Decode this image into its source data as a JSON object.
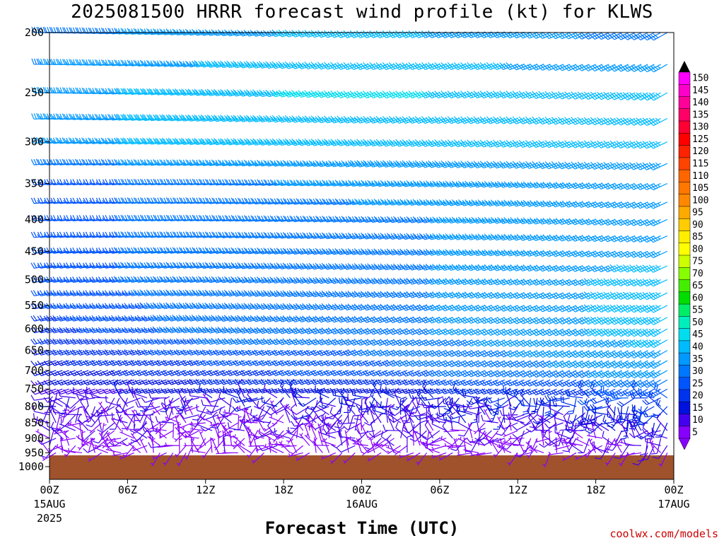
{
  "chart_data": {
    "type": "wind-barb-time-height",
    "title": "2025081500 HRRR forecast wind profile (kt) for KLWS",
    "xlabel": "Forecast Time (UTC)",
    "credit": "coolwx.com/models",
    "y_axis": {
      "scale": "log-pressure",
      "range": [
        200,
        1000
      ],
      "ticks": [
        "200",
        "250",
        "300",
        "350",
        "400",
        "450",
        "500",
        "550",
        "600",
        "650",
        "700",
        "750",
        "800",
        "850",
        "900",
        "950",
        "1000"
      ]
    },
    "x_axis": {
      "range_hours": [
        0,
        48
      ],
      "ticks": [
        {
          "hour": 0,
          "label": "00Z",
          "sub1": "15AUG",
          "sub2": "2025"
        },
        {
          "hour": 6,
          "label": "06Z",
          "sub1": "",
          "sub2": ""
        },
        {
          "hour": 12,
          "label": "12Z",
          "sub1": "",
          "sub2": ""
        },
        {
          "hour": 18,
          "label": "18Z",
          "sub1": "",
          "sub2": ""
        },
        {
          "hour": 24,
          "label": "00Z",
          "sub1": "16AUG",
          "sub2": ""
        },
        {
          "hour": 30,
          "label": "06Z",
          "sub1": "",
          "sub2": ""
        },
        {
          "hour": 36,
          "label": "12Z",
          "sub1": "",
          "sub2": ""
        },
        {
          "hour": 42,
          "label": "18Z",
          "sub1": "",
          "sub2": ""
        },
        {
          "hour": 48,
          "label": "00Z",
          "sub1": "17AUG",
          "sub2": ""
        }
      ]
    },
    "colorbar": {
      "labels": [
        "150",
        "145",
        "140",
        "135",
        "130",
        "125",
        "120",
        "115",
        "110",
        "105",
        "100",
        "95",
        "90",
        "85",
        "80",
        "75",
        "70",
        "65",
        "60",
        "55",
        "50",
        "45",
        "40",
        "35",
        "30",
        "25",
        "20",
        "15",
        "10",
        "5"
      ],
      "colors": [
        "#ff00ff",
        "#ff00cc",
        "#ff0099",
        "#ff0066",
        "#ff0033",
        "#ff0000",
        "#ff2200",
        "#ff4400",
        "#ff6600",
        "#ff7700",
        "#ff8800",
        "#ffaa00",
        "#ffcc00",
        "#ffee00",
        "#ffff00",
        "#ccff00",
        "#88ff00",
        "#44ee00",
        "#00dd00",
        "#00ee66",
        "#00eebb",
        "#00ddee",
        "#00bbff",
        "#0099ff",
        "#0077ff",
        "#0055ff",
        "#0033ee",
        "#0011dd",
        "#4400ee",
        "#8800ff"
      ]
    },
    "ground_color": "#a0522d",
    "levels_hpa": [
      200,
      225,
      250,
      275,
      300,
      325,
      350,
      375,
      400,
      425,
      450,
      475,
      500,
      525,
      550,
      575,
      600,
      625,
      650,
      675,
      700,
      725,
      750,
      775,
      800,
      825,
      850,
      875,
      900,
      925,
      950,
      975
    ],
    "times_hours_step": 0.5,
    "series": [
      {
        "level_hpa": 200,
        "speed_kt_by_hour": [
          [
            0,
            30
          ],
          [
            12,
            35
          ],
          [
            24,
            40
          ],
          [
            36,
            35
          ],
          [
            48,
            30
          ]
        ],
        "dir_deg_by_hour": [
          [
            0,
            270
          ],
          [
            12,
            260
          ],
          [
            24,
            250
          ],
          [
            36,
            250
          ],
          [
            48,
            240
          ]
        ]
      },
      {
        "level_hpa": 250,
        "speed_kt_by_hour": [
          [
            0,
            35
          ],
          [
            12,
            40
          ],
          [
            24,
            45
          ],
          [
            36,
            40
          ],
          [
            48,
            40
          ]
        ],
        "dir_deg_by_hour": [
          [
            0,
            270
          ],
          [
            12,
            260
          ],
          [
            24,
            250
          ],
          [
            36,
            250
          ],
          [
            48,
            240
          ]
        ]
      },
      {
        "level_hpa": 300,
        "speed_kt_by_hour": [
          [
            0,
            35
          ],
          [
            12,
            40
          ],
          [
            24,
            40
          ],
          [
            36,
            40
          ],
          [
            48,
            40
          ]
        ],
        "dir_deg_by_hour": [
          [
            0,
            265
          ],
          [
            12,
            260
          ],
          [
            24,
            255
          ],
          [
            36,
            250
          ],
          [
            48,
            245
          ]
        ]
      },
      {
        "level_hpa": 350,
        "speed_kt_by_hour": [
          [
            0,
            25
          ],
          [
            12,
            30
          ],
          [
            24,
            35
          ],
          [
            36,
            35
          ],
          [
            48,
            35
          ]
        ],
        "dir_deg_by_hour": [
          [
            0,
            265
          ],
          [
            12,
            265
          ],
          [
            24,
            260
          ],
          [
            36,
            255
          ],
          [
            48,
            245
          ]
        ]
      },
      {
        "level_hpa": 400,
        "speed_kt_by_hour": [
          [
            0,
            25
          ],
          [
            12,
            30
          ],
          [
            24,
            30
          ],
          [
            36,
            35
          ],
          [
            48,
            35
          ]
        ],
        "dir_deg_by_hour": [
          [
            0,
            265
          ],
          [
            12,
            265
          ],
          [
            24,
            260
          ],
          [
            36,
            255
          ],
          [
            48,
            245
          ]
        ]
      },
      {
        "level_hpa": 500,
        "speed_kt_by_hour": [
          [
            0,
            25
          ],
          [
            12,
            30
          ],
          [
            24,
            30
          ],
          [
            36,
            35
          ],
          [
            48,
            40
          ]
        ],
        "dir_deg_by_hour": [
          [
            0,
            260
          ],
          [
            12,
            260
          ],
          [
            24,
            255
          ],
          [
            36,
            250
          ],
          [
            48,
            245
          ]
        ]
      },
      {
        "level_hpa": 600,
        "speed_kt_by_hour": [
          [
            0,
            20
          ],
          [
            12,
            30
          ],
          [
            24,
            30
          ],
          [
            36,
            35
          ],
          [
            48,
            40
          ]
        ],
        "dir_deg_by_hour": [
          [
            0,
            255
          ],
          [
            12,
            255
          ],
          [
            24,
            250
          ],
          [
            36,
            245
          ],
          [
            48,
            240
          ]
        ]
      },
      {
        "level_hpa": 700,
        "speed_kt_by_hour": [
          [
            0,
            15
          ],
          [
            12,
            20
          ],
          [
            24,
            25
          ],
          [
            36,
            30
          ],
          [
            48,
            35
          ]
        ],
        "dir_deg_by_hour": [
          [
            0,
            250
          ],
          [
            12,
            250
          ],
          [
            24,
            250
          ],
          [
            36,
            245
          ],
          [
            48,
            240
          ]
        ]
      },
      {
        "level_hpa": 750,
        "speed_kt_by_hour": [
          [
            0,
            10
          ],
          [
            12,
            15
          ],
          [
            24,
            15
          ],
          [
            36,
            20
          ],
          [
            48,
            25
          ]
        ],
        "dir_deg_by_hour": [
          [
            0,
            250
          ],
          [
            12,
            255
          ],
          [
            24,
            255
          ],
          [
            36,
            250
          ],
          [
            48,
            240
          ]
        ]
      },
      {
        "level_hpa": 850,
        "speed_kt_by_hour": [
          [
            0,
            10
          ],
          [
            12,
            5
          ],
          [
            24,
            10
          ],
          [
            36,
            10
          ],
          [
            48,
            15
          ]
        ],
        "dir_deg_by_hour": [
          [
            0,
            300
          ],
          [
            12,
            280
          ],
          [
            24,
            300
          ],
          [
            36,
            280
          ],
          [
            48,
            250
          ]
        ]
      },
      {
        "level_hpa": 950,
        "speed_kt_by_hour": [
          [
            0,
            5
          ],
          [
            12,
            5
          ],
          [
            24,
            5
          ],
          [
            36,
            5
          ],
          [
            48,
            5
          ]
        ],
        "dir_deg_by_hour": [
          [
            0,
            300
          ],
          [
            12,
            280
          ],
          [
            24,
            300
          ],
          [
            36,
            280
          ],
          [
            48,
            270
          ]
        ]
      }
    ]
  }
}
